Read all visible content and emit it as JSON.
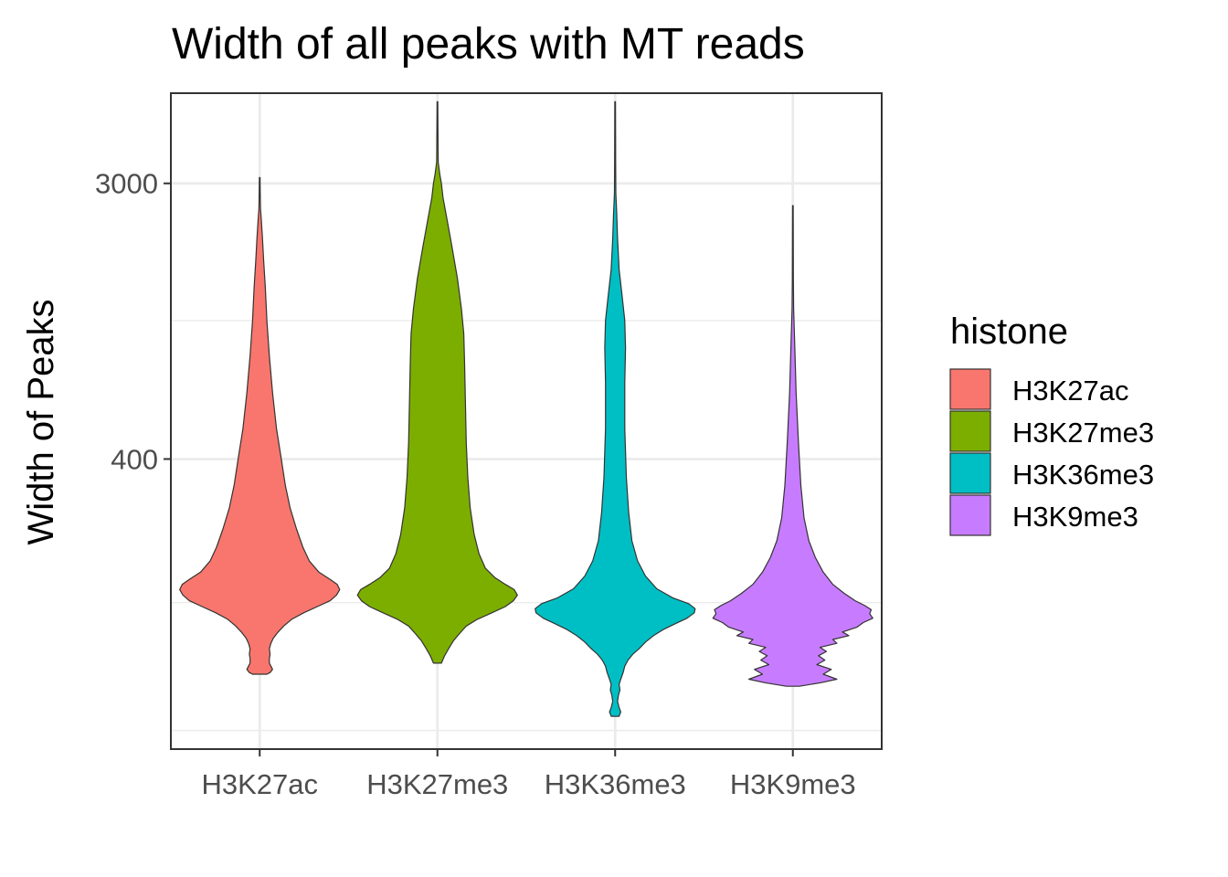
{
  "chart_data": {
    "type": "violin",
    "title": "Width of all peaks with MT reads",
    "xlabel": "",
    "ylabel": "Width of Peaks",
    "y_scale": "log",
    "ylim": [
      48,
      5800
    ],
    "y_ticks": [
      {
        "value": 400,
        "label": "400"
      },
      {
        "value": 3000,
        "label": "3000"
      }
    ],
    "y_minor_gridlines": [
      55,
      140,
      1100,
      8200
    ],
    "grid": true,
    "legend": {
      "title": "histone",
      "position": "right"
    },
    "categories": [
      "H3K27ac",
      "H3K27me3",
      "H3K36me3",
      "H3K9me3"
    ],
    "series": [
      {
        "name": "H3K27ac",
        "color": "#F8766D",
        "min": 83,
        "max": 3130,
        "profile": [
          [
            83,
            0.09
          ],
          [
            84,
            0.13
          ],
          [
            86,
            0.16
          ],
          [
            88,
            0.14
          ],
          [
            90,
            0.12
          ],
          [
            93,
            0.12
          ],
          [
            96,
            0.13
          ],
          [
            100,
            0.12
          ],
          [
            104,
            0.14
          ],
          [
            108,
            0.17
          ],
          [
            113,
            0.23
          ],
          [
            118,
            0.3
          ],
          [
            124,
            0.4
          ],
          [
            130,
            0.55
          ],
          [
            136,
            0.72
          ],
          [
            142,
            0.88
          ],
          [
            148,
            0.96
          ],
          [
            154,
            1.0
          ],
          [
            160,
            0.97
          ],
          [
            166,
            0.88
          ],
          [
            175,
            0.74
          ],
          [
            190,
            0.62
          ],
          [
            210,
            0.54
          ],
          [
            240,
            0.46
          ],
          [
            280,
            0.38
          ],
          [
            330,
            0.32
          ],
          [
            400,
            0.27
          ],
          [
            500,
            0.21
          ],
          [
            650,
            0.16
          ],
          [
            850,
            0.12
          ],
          [
            1100,
            0.09
          ],
          [
            1400,
            0.07
          ],
          [
            1700,
            0.05
          ],
          [
            2000,
            0.035
          ],
          [
            2300,
            0.02
          ],
          [
            2500,
            0.01
          ],
          [
            2800,
            0.006
          ],
          [
            3130,
            0.004
          ]
        ]
      },
      {
        "name": "H3K27me3",
        "color": "#7CAE00",
        "min": 90,
        "max": 5450,
        "profile": [
          [
            90,
            0.05
          ],
          [
            95,
            0.09
          ],
          [
            100,
            0.14
          ],
          [
            106,
            0.2
          ],
          [
            112,
            0.28
          ],
          [
            118,
            0.36
          ],
          [
            124,
            0.5
          ],
          [
            130,
            0.68
          ],
          [
            136,
            0.85
          ],
          [
            142,
            0.95
          ],
          [
            148,
            1.0
          ],
          [
            154,
            0.96
          ],
          [
            160,
            0.85
          ],
          [
            168,
            0.72
          ],
          [
            180,
            0.6
          ],
          [
            200,
            0.52
          ],
          [
            230,
            0.46
          ],
          [
            280,
            0.41
          ],
          [
            350,
            0.38
          ],
          [
            450,
            0.36
          ],
          [
            600,
            0.35
          ],
          [
            800,
            0.34
          ],
          [
            1000,
            0.33
          ],
          [
            1200,
            0.3
          ],
          [
            1500,
            0.25
          ],
          [
            1900,
            0.18
          ],
          [
            2300,
            0.12
          ],
          [
            2700,
            0.07
          ],
          [
            3000,
            0.05
          ],
          [
            3200,
            0.03
          ],
          [
            3500,
            0.01
          ],
          [
            4500,
            0.006
          ],
          [
            5450,
            0.004
          ]
        ]
      },
      {
        "name": "H3K36me3",
        "color": "#00BFC4",
        "min": 61,
        "max": 5450,
        "profile": [
          [
            61,
            0.05
          ],
          [
            63,
            0.07
          ],
          [
            65,
            0.05
          ],
          [
            68,
            0.03
          ],
          [
            71,
            0.04
          ],
          [
            74,
            0.06
          ],
          [
            77,
            0.05
          ],
          [
            80,
            0.07
          ],
          [
            84,
            0.1
          ],
          [
            88,
            0.12
          ],
          [
            92,
            0.16
          ],
          [
            96,
            0.22
          ],
          [
            100,
            0.3
          ],
          [
            105,
            0.38
          ],
          [
            110,
            0.48
          ],
          [
            115,
            0.6
          ],
          [
            120,
            0.75
          ],
          [
            125,
            0.9
          ],
          [
            130,
            0.99
          ],
          [
            134,
            1.0
          ],
          [
            139,
            0.92
          ],
          [
            145,
            0.72
          ],
          [
            155,
            0.52
          ],
          [
            170,
            0.38
          ],
          [
            190,
            0.28
          ],
          [
            220,
            0.21
          ],
          [
            270,
            0.17
          ],
          [
            350,
            0.14
          ],
          [
            500,
            0.12
          ],
          [
            700,
            0.12
          ],
          [
            900,
            0.13
          ],
          [
            1100,
            0.12
          ],
          [
            1300,
            0.09
          ],
          [
            1600,
            0.05
          ],
          [
            2000,
            0.03
          ],
          [
            2400,
            0.02
          ],
          [
            2800,
            0.008
          ],
          [
            3500,
            0.006
          ],
          [
            5450,
            0.004
          ]
        ]
      },
      {
        "name": "H3K9me3",
        "color": "#C77CFF",
        "min": 76,
        "max": 2550,
        "profile": [
          [
            76,
            0.08
          ],
          [
            78,
            0.35
          ],
          [
            80,
            0.55
          ],
          [
            83,
            0.38
          ],
          [
            86,
            0.48
          ],
          [
            89,
            0.3
          ],
          [
            92,
            0.4
          ],
          [
            95,
            0.32
          ],
          [
            98,
            0.42
          ],
          [
            101,
            0.34
          ],
          [
            104,
            0.55
          ],
          [
            107,
            0.5
          ],
          [
            110,
            0.7
          ],
          [
            113,
            0.62
          ],
          [
            117,
            0.8
          ],
          [
            121,
            0.88
          ],
          [
            125,
            1.0
          ],
          [
            129,
            0.96
          ],
          [
            133,
            0.98
          ],
          [
            137,
            0.9
          ],
          [
            142,
            0.78
          ],
          [
            150,
            0.64
          ],
          [
            160,
            0.5
          ],
          [
            175,
            0.38
          ],
          [
            195,
            0.28
          ],
          [
            220,
            0.2
          ],
          [
            260,
            0.14
          ],
          [
            330,
            0.1
          ],
          [
            450,
            0.07
          ],
          [
            650,
            0.04
          ],
          [
            900,
            0.025
          ],
          [
            1200,
            0.01
          ],
          [
            1500,
            0.006
          ],
          [
            2550,
            0.004
          ]
        ]
      }
    ]
  }
}
